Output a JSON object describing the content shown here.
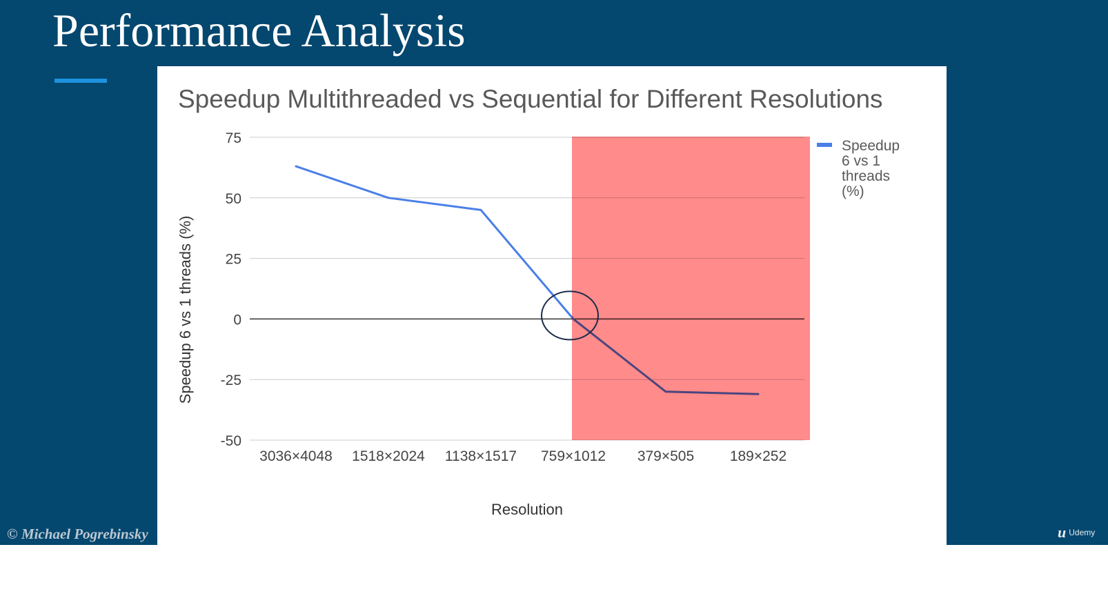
{
  "slide": {
    "title": "Performance Analysis",
    "copyright": "© Michael Pogrebinsky",
    "brand": {
      "mark": "u",
      "name": "Udemy"
    }
  },
  "colors": {
    "slide_background": "#04476f",
    "accent": "#1d93e0",
    "series_line": "#4a7fe8",
    "highlight_region": "#ff8787",
    "annotation_circle": "#1c2b4a"
  },
  "chart_data": {
    "type": "line",
    "title": "Speedup Multithreaded vs Sequential for Different Resolutions",
    "xlabel": "Resolution",
    "ylabel": "Speedup 6 vs 1 threads (%)",
    "categories": [
      "3036×4048",
      "1518×2024",
      "1138×1517",
      "759×1012",
      "379×505",
      "189×252"
    ],
    "series": [
      {
        "name": "Speedup 6 vs 1 threads (%)",
        "values": [
          63,
          50,
          45,
          0,
          -30,
          -31
        ]
      }
    ],
    "ylim": [
      -50,
      75
    ],
    "yticks": [
      "75",
      "50",
      "25",
      "0",
      "-25",
      "-50"
    ],
    "grid": true,
    "legend": "right",
    "highlight_region": {
      "from_category": "759×1012",
      "to": "right-edge"
    },
    "annotation": {
      "type": "circle",
      "at_category": "759×1012",
      "value": 0
    }
  }
}
